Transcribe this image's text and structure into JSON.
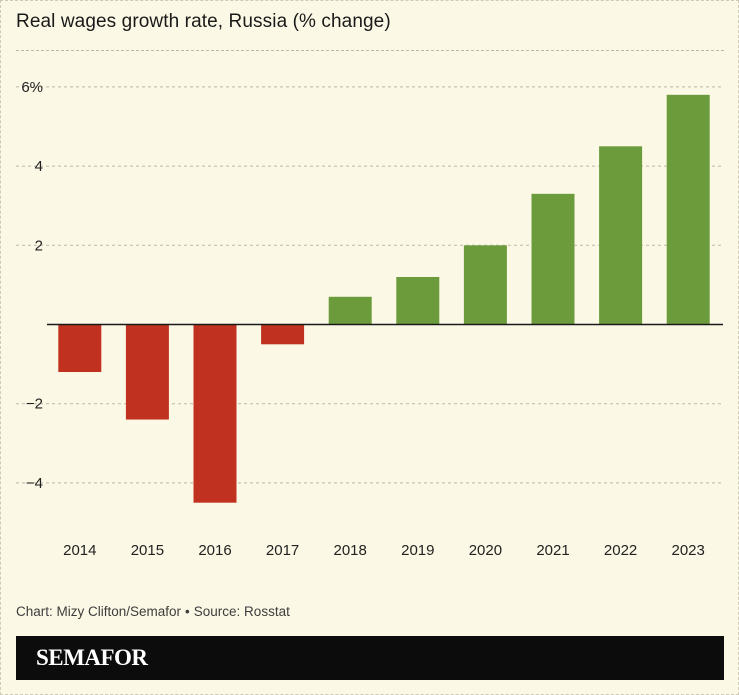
{
  "chart_data": {
    "type": "bar",
    "title": "Real wages growth rate, Russia (% change)",
    "categories": [
      "2014",
      "2015",
      "2016",
      "2017",
      "2018",
      "2019",
      "2020",
      "2021",
      "2022",
      "2023"
    ],
    "values": [
      -1.2,
      -2.4,
      -4.5,
      -0.5,
      0.7,
      1.2,
      2.0,
      3.3,
      4.5,
      5.8
    ],
    "ylim": [
      -5,
      6
    ],
    "yticks": [
      6,
      4,
      2,
      0,
      -2,
      -4
    ],
    "ytick_labels": [
      "6%",
      "4",
      "2",
      "",
      "−2",
      "−4"
    ],
    "xlabel": "",
    "ylabel": "",
    "grid": true,
    "colors": {
      "negative": "#c0321f",
      "positive": "#6c9b3c",
      "grid": "#bdb9a6",
      "axis": "#1a1a1a"
    }
  },
  "source": {
    "credit": "Chart: Mizy Clifton/Semafor",
    "separator": "•",
    "attribution": "Source: Rosstat"
  },
  "brand": {
    "name": "SEMAFOR"
  }
}
